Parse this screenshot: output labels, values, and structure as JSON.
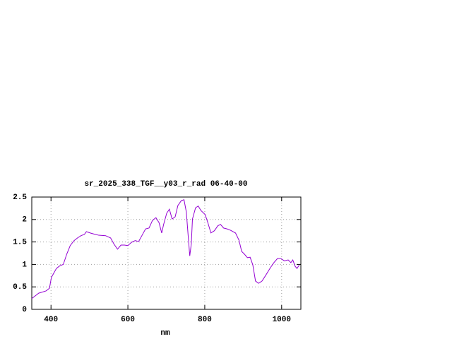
{
  "chart_data": {
    "type": "line",
    "title": "sr_2025_338_TGF__y03_r_rad 06-40-00",
    "x_label": "nm",
    "x": [
      350,
      368,
      387,
      396,
      401,
      414,
      423,
      432,
      441,
      450,
      460,
      469,
      478,
      487,
      492,
      502,
      514,
      524,
      542,
      555,
      564,
      573,
      582,
      591,
      600,
      609,
      619,
      628,
      637,
      646,
      655,
      664,
      673,
      681,
      688,
      693,
      701,
      708,
      715,
      723,
      730,
      739,
      746,
      752,
      757,
      761,
      765,
      768,
      776,
      783,
      790,
      801,
      808,
      816,
      825,
      834,
      841,
      849,
      858,
      867,
      880,
      889,
      896,
      903,
      911,
      918,
      925,
      932,
      940,
      949,
      958,
      971,
      980,
      989,
      998,
      1007,
      1017,
      1024,
      1029,
      1035,
      1040,
      1046
    ],
    "series": [
      {
        "color": "#9400d3",
        "values": [
          0.24,
          0.36,
          0.41,
          0.47,
          0.71,
          0.91,
          0.97,
          1.0,
          1.23,
          1.42,
          1.53,
          1.59,
          1.64,
          1.67,
          1.73,
          1.7,
          1.67,
          1.65,
          1.64,
          1.59,
          1.45,
          1.34,
          1.43,
          1.43,
          1.42,
          1.49,
          1.53,
          1.51,
          1.65,
          1.79,
          1.81,
          1.98,
          2.04,
          1.93,
          1.7,
          1.89,
          2.14,
          2.23,
          2.01,
          2.06,
          2.31,
          2.42,
          2.44,
          2.17,
          1.62,
          1.19,
          1.46,
          2.01,
          2.26,
          2.3,
          2.2,
          2.11,
          1.93,
          1.7,
          1.75,
          1.86,
          1.89,
          1.81,
          1.79,
          1.76,
          1.7,
          1.54,
          1.29,
          1.23,
          1.15,
          1.16,
          0.99,
          0.63,
          0.58,
          0.63,
          0.75,
          0.93,
          1.04,
          1.13,
          1.13,
          1.08,
          1.1,
          1.04,
          1.1,
          0.96,
          0.91,
          0.99
        ]
      }
    ],
    "xlim": [
      350,
      1050
    ],
    "xticks": [
      400,
      600,
      800,
      1000
    ],
    "ylim": [
      0,
      2.5
    ],
    "yticks": [
      0,
      0.5,
      1,
      1.5,
      2,
      2.5
    ],
    "grid": true
  }
}
